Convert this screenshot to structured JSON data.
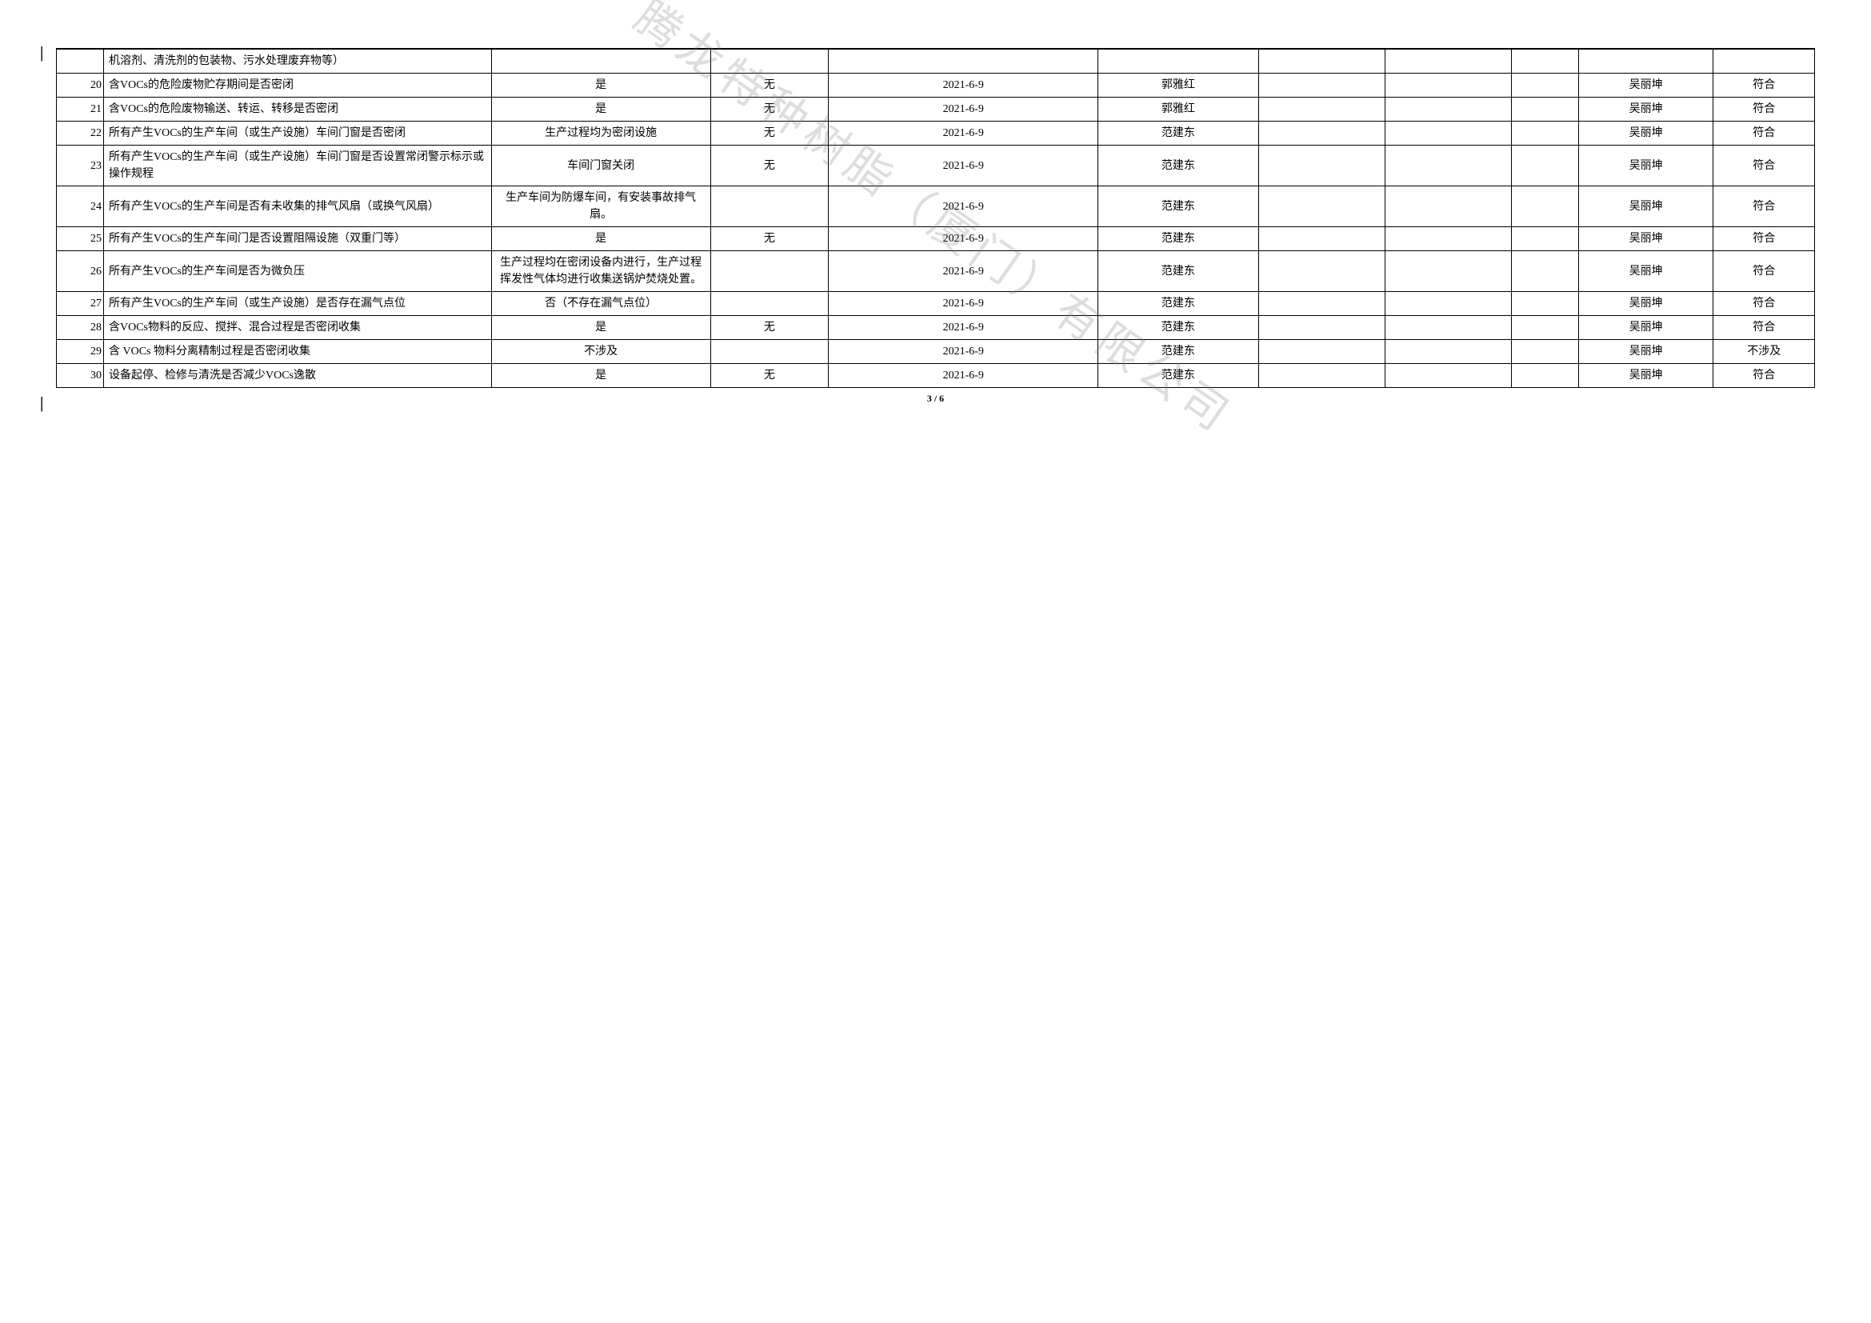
{
  "watermark_text": "腾龙特种树脂（厦门）有限公司",
  "page_indicator": "3 / 6",
  "header_row": {
    "desc": "机溶剂、清洗剂的包装物、污水处理废弃物等）"
  },
  "rows": [
    {
      "num": "20",
      "desc": "含VOCs的危险废物贮存期间是否密闭",
      "status": "是",
      "c4": "无",
      "date": "2021-6-9",
      "person": "郭雅红",
      "approver": "吴丽坤",
      "result": "符合"
    },
    {
      "num": "21",
      "desc": "含VOCs的危险废物输送、转运、转移是否密闭",
      "status": "是",
      "c4": "无",
      "date": "2021-6-9",
      "person": "郭雅红",
      "approver": "吴丽坤",
      "result": "符合"
    },
    {
      "num": "22",
      "desc": "所有产生VOCs的生产车间（或生产设施）车间门窗是否密闭",
      "status": "生产过程均为密闭设施",
      "c4": "无",
      "date": "2021-6-9",
      "person": "范建东",
      "approver": "吴丽坤",
      "result": "符合"
    },
    {
      "num": "23",
      "desc": "所有产生VOCs的生产车间（或生产设施）车间门窗是否设置常闭警示标示或操作规程",
      "status": "车间门窗关闭",
      "c4": "无",
      "date": "2021-6-9",
      "person": "范建东",
      "approver": "吴丽坤",
      "result": "符合"
    },
    {
      "num": "24",
      "desc": "所有产生VOCs的生产车间是否有未收集的排气风扇（或换气风扇）",
      "status": "生产车间为防爆车间，有安装事故排气扇。",
      "c4": "",
      "date": "2021-6-9",
      "person": "范建东",
      "approver": "吴丽坤",
      "result": "符合"
    },
    {
      "num": "25",
      "desc": "所有产生VOCs的生产车间门是否设置阻隔设施（双重门等）",
      "status": "是",
      "c4": "无",
      "date": "2021-6-9",
      "person": "范建东",
      "approver": "吴丽坤",
      "result": "符合"
    },
    {
      "num": "26",
      "desc": "所有产生VOCs的生产车间是否为微负压",
      "status": "生产过程均在密闭设备内进行，生产过程挥发性气体均进行收集送锅炉焚烧处置。",
      "c4": "",
      "date": "2021-6-9",
      "person": "范建东",
      "approver": "吴丽坤",
      "result": "符合"
    },
    {
      "num": "27",
      "desc": "所有产生VOCs的生产车间（或生产设施）是否存在漏气点位",
      "status": "否（不存在漏气点位）",
      "c4": "",
      "date": "2021-6-9",
      "person": "范建东",
      "approver": "吴丽坤",
      "result": "符合"
    },
    {
      "num": "28",
      "desc": "含VOCs物料的反应、搅拌、混合过程是否密闭收集",
      "status": "是",
      "c4": "无",
      "date": "2021-6-9",
      "person": "范建东",
      "approver": "吴丽坤",
      "result": "符合"
    },
    {
      "num": "29",
      "desc": "含 VOCs 物料分离精制过程是否密闭收集",
      "status": "不涉及",
      "c4": "",
      "date": "2021-6-9",
      "person": "范建东",
      "approver": "吴丽坤",
      "result": "不涉及"
    },
    {
      "num": "30",
      "desc": "设备起停、检修与清洗是否减少VOCs逸散",
      "status": "是",
      "c4": "无",
      "date": "2021-6-9",
      "person": "范建东",
      "approver": "吴丽坤",
      "result": "符合"
    }
  ]
}
